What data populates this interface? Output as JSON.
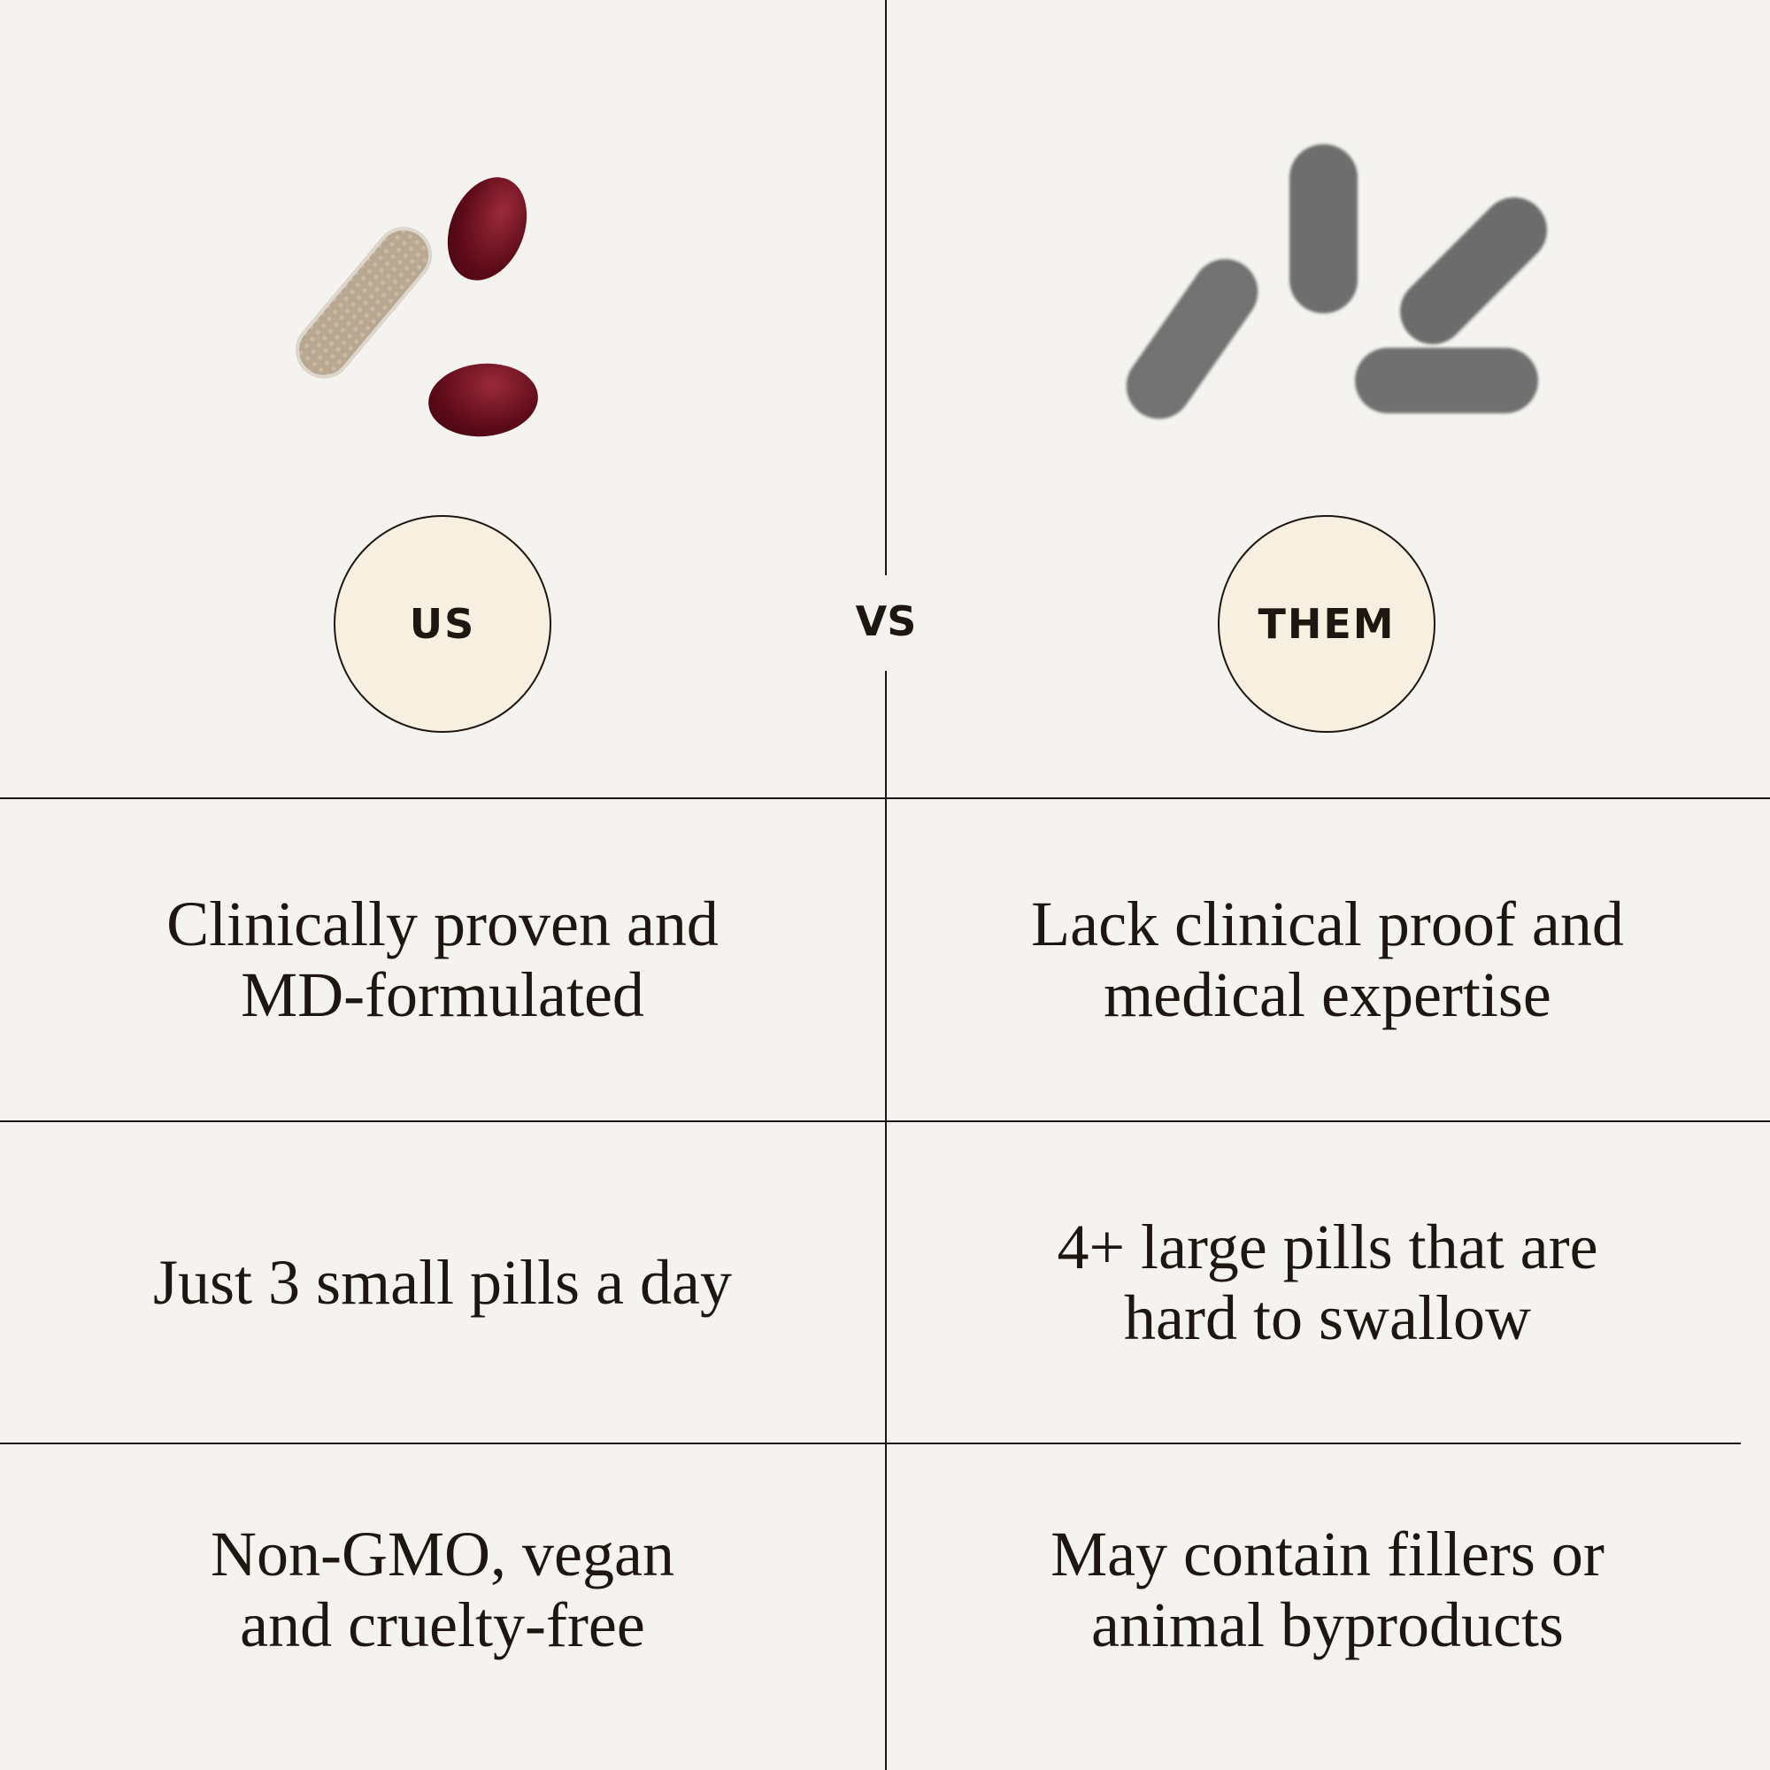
{
  "header": {
    "us_label": "US",
    "vs_label": "VS",
    "them_label": "THEM"
  },
  "images": {
    "us": "us-pills-image",
    "them": "them-pills-image"
  },
  "colors": {
    "background": "#f4f3ef",
    "circle_fill": "#f7efe0",
    "line": "#1e1611",
    "softgel": "#6b0d1c",
    "generic_pill": "#6f6f6f"
  },
  "rows": [
    {
      "us": "Clinically proven and MD-formulated",
      "them": "Lack clinical proof and medical expertise"
    },
    {
      "us": "Just 3 small pills a day",
      "them": "4+ large pills that are hard to swallow"
    },
    {
      "us": "Non-GMO, vegan and cruelty-free",
      "them": "May contain fillers or animal byproducts"
    }
  ]
}
